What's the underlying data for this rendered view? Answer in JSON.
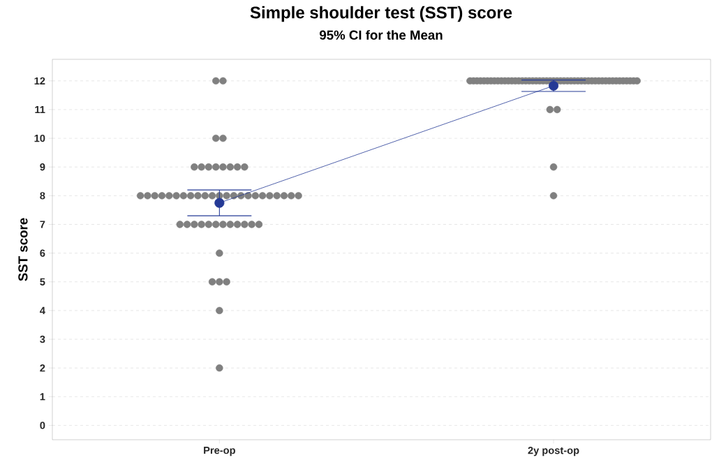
{
  "chart_data": {
    "type": "scatter",
    "title": "Simple shoulder test (SST) score",
    "subtitle": "95% CI for the Mean",
    "ylabel": "SST score",
    "categories": [
      "Pre-op",
      "2y post-op"
    ],
    "ylim": [
      -0.5,
      12.75
    ],
    "yticks": [
      0,
      1,
      2,
      3,
      4,
      5,
      6,
      7,
      8,
      9,
      10,
      11,
      12
    ],
    "grid": "y",
    "series": [
      {
        "color": "#808080",
        "marker": "circle",
        "x": [
          "Pre-op",
          "Pre-op",
          "Pre-op",
          "Pre-op",
          "Pre-op",
          "Pre-op",
          "Pre-op",
          "Pre-op",
          "Pre-op",
          "Pre-op",
          "Pre-op",
          "Pre-op",
          "Pre-op",
          "Pre-op",
          "Pre-op",
          "Pre-op",
          "Pre-op",
          "Pre-op",
          "Pre-op",
          "Pre-op",
          "Pre-op",
          "Pre-op",
          "Pre-op",
          "Pre-op",
          "Pre-op",
          "Pre-op",
          "Pre-op",
          "Pre-op",
          "Pre-op",
          "Pre-op",
          "Pre-op",
          "Pre-op",
          "Pre-op",
          "Pre-op",
          "Pre-op",
          "Pre-op",
          "Pre-op",
          "Pre-op",
          "Pre-op",
          "Pre-op",
          "Pre-op",
          "Pre-op",
          "Pre-op",
          "Pre-op",
          "Pre-op",
          "Pre-op",
          "Pre-op",
          "Pre-op",
          "Pre-op",
          "Pre-op",
          "Pre-op",
          "Pre-op",
          "Pre-op"
        ],
        "values": [
          12,
          12,
          10,
          10,
          9,
          9,
          9,
          9,
          9,
          9,
          9,
          9,
          8,
          8,
          8,
          8,
          8,
          8,
          8,
          8,
          8,
          8,
          8,
          8,
          8,
          8,
          8,
          8,
          8,
          8,
          8,
          8,
          8,
          8,
          8,
          7,
          7,
          7,
          7,
          7,
          7,
          7,
          7,
          7,
          7,
          7,
          7,
          6,
          5,
          5,
          5,
          4,
          2
        ]
      },
      {
        "color": "#808080",
        "marker": "circle",
        "x": [
          "2y post-op",
          "2y post-op",
          "2y post-op",
          "2y post-op",
          "2y post-op",
          "2y post-op",
          "2y post-op",
          "2y post-op",
          "2y post-op",
          "2y post-op",
          "2y post-op",
          "2y post-op",
          "2y post-op",
          "2y post-op",
          "2y post-op",
          "2y post-op",
          "2y post-op",
          "2y post-op",
          "2y post-op",
          "2y post-op",
          "2y post-op",
          "2y post-op",
          "2y post-op",
          "2y post-op",
          "2y post-op",
          "2y post-op",
          "2y post-op",
          "2y post-op",
          "2y post-op",
          "2y post-op",
          "2y post-op",
          "2y post-op",
          "2y post-op",
          "2y post-op",
          "2y post-op",
          "2y post-op",
          "2y post-op",
          "2y post-op",
          "2y post-op",
          "2y post-op",
          "2y post-op",
          "2y post-op",
          "2y post-op",
          "2y post-op",
          "2y post-op",
          "2y post-op",
          "2y post-op",
          "2y post-op",
          "2y post-op",
          "2y post-op",
          "2y post-op",
          "2y post-op",
          "2y post-op"
        ],
        "values": [
          12,
          12,
          12,
          12,
          12,
          12,
          12,
          12,
          12,
          12,
          12,
          12,
          12,
          12,
          12,
          12,
          12,
          12,
          12,
          12,
          12,
          12,
          12,
          12,
          12,
          12,
          12,
          12,
          12,
          12,
          12,
          12,
          12,
          12,
          12,
          12,
          12,
          12,
          12,
          12,
          12,
          12,
          12,
          12,
          12,
          12,
          12,
          12,
          12,
          11,
          11,
          9,
          8
        ]
      },
      {
        "type": "line",
        "color": "#253a96",
        "marker": "circle",
        "line_style": "solid",
        "values": [
          7.75,
          11.83
        ],
        "errors": [
          [
            7.3,
            8.2
          ],
          [
            11.63,
            12.03
          ]
        ]
      }
    ]
  }
}
